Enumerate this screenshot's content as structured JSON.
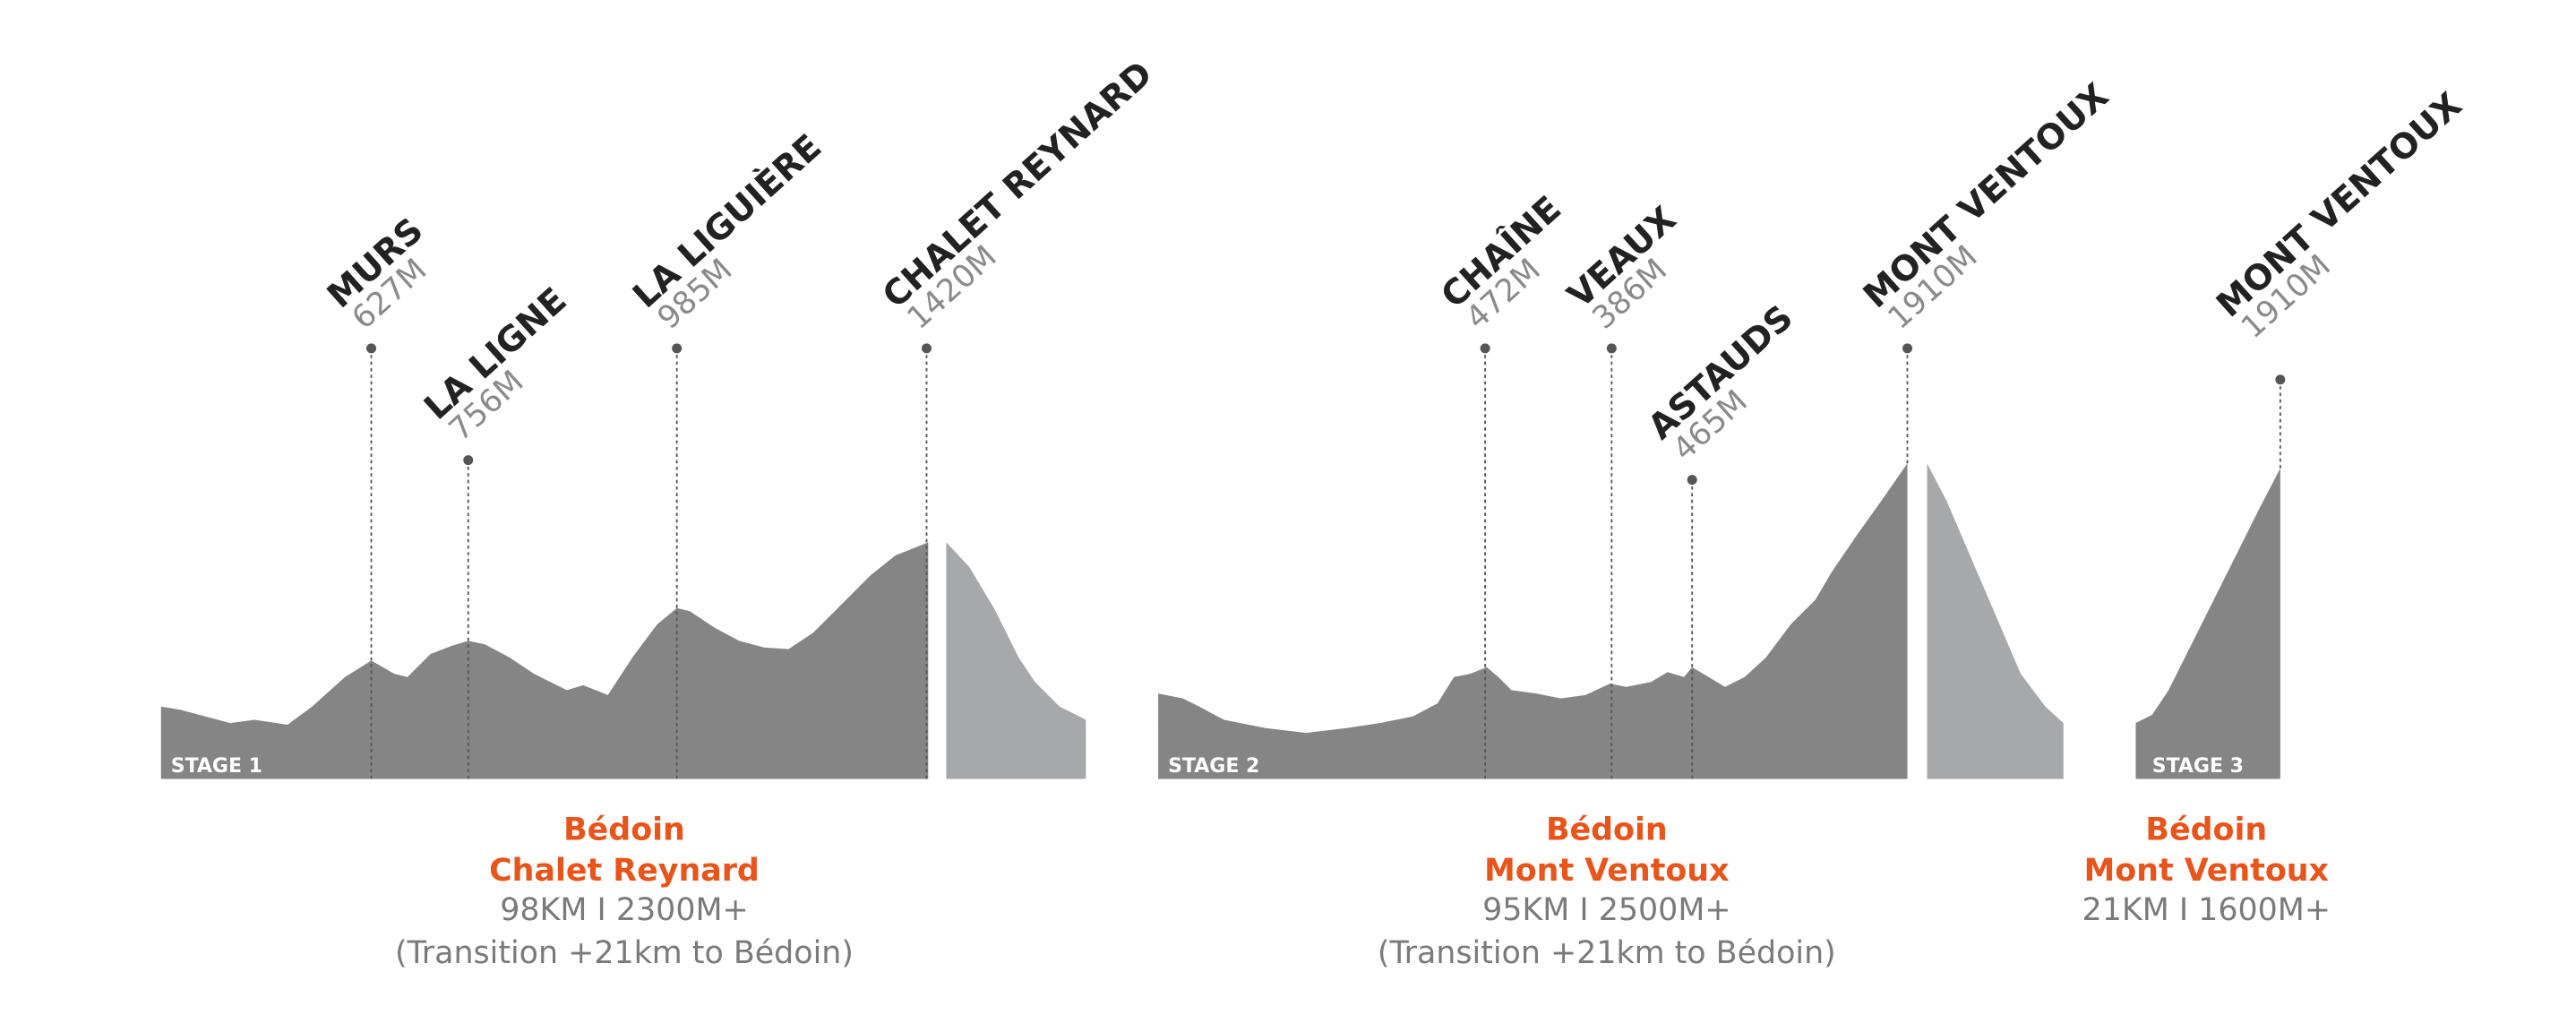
{
  "stages": [
    {
      "label": "STAGE 1",
      "start": "Bédoin",
      "end": "Chalet Reynard",
      "stats": "98KM I 2300M+",
      "note": "(Transition +21km to Bédoin)",
      "peaks": [
        {
          "name": "MURS",
          "elevation": "627M"
        },
        {
          "name": "LA LIGNE",
          "elevation": "756M"
        },
        {
          "name": "LA LIGUIÈRE",
          "elevation": "985M"
        },
        {
          "name": "CHALET REYNARD",
          "elevation": "1420M"
        }
      ]
    },
    {
      "label": "STAGE 2",
      "start": "Bédoin",
      "end": "Mont Ventoux",
      "stats": "95KM I 2500M+",
      "note": "(Transition +21km to Bédoin)",
      "peaks": [
        {
          "name": "CHAÎNE",
          "elevation": "472M"
        },
        {
          "name": "VEAUX",
          "elevation": "386M"
        },
        {
          "name": "ASTAUDS",
          "elevation": "465M"
        },
        {
          "name": "MONT VENTOUX",
          "elevation": "1910M"
        }
      ]
    },
    {
      "label": "STAGE 3",
      "start": "Bédoin",
      "end": "Mont Ventoux",
      "stats": "21KM I 1600M+",
      "peaks": [
        {
          "name": "MONT VENTOUX",
          "elevation": "1910M"
        }
      ]
    }
  ]
}
